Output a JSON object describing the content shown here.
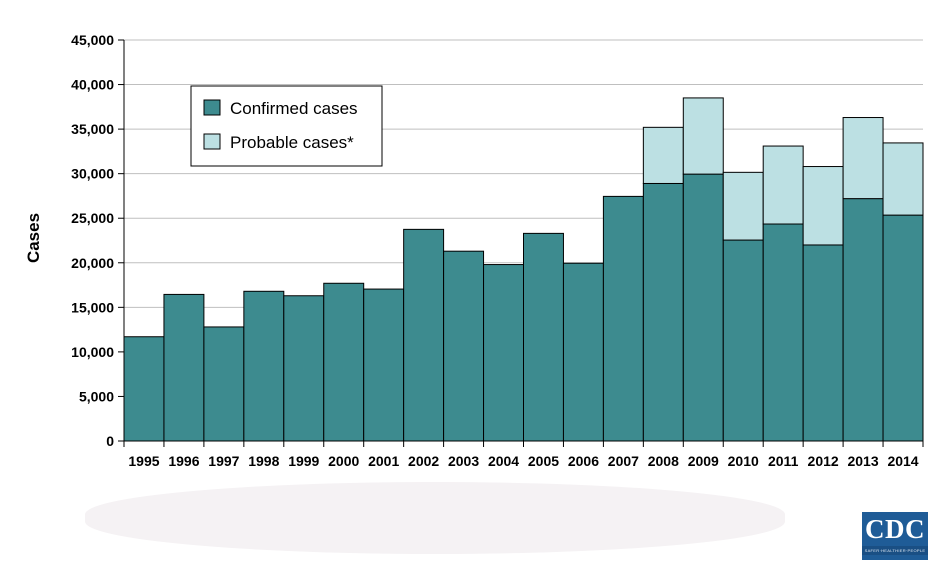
{
  "colors": {
    "confirmed": "#3d8b8f",
    "probable": "#bce0e3",
    "gridline": "#bfbfbf",
    "logo": "#1f5c97"
  },
  "logo": {
    "text": "CDC",
    "tagline": "SAFER·HEALTHIER·PEOPLE"
  },
  "chart_data": {
    "type": "bar",
    "stacked": true,
    "ylabel": "Cases",
    "xlabel": "",
    "ylim": [
      0,
      45000
    ],
    "ytick_step": 5000,
    "yticks": [
      "0",
      "5,000",
      "10,000",
      "15,000",
      "20,000",
      "25,000",
      "30,000",
      "35,000",
      "40,000",
      "45,000"
    ],
    "grid": true,
    "legend_position": "top-left",
    "categories": [
      "1995",
      "1996",
      "1997",
      "1998",
      "1999",
      "2000",
      "2001",
      "2002",
      "2003",
      "2004",
      "2005",
      "2006",
      "2007",
      "2008",
      "2009",
      "2010",
      "2011",
      "2012",
      "2013",
      "2014"
    ],
    "series": [
      {
        "name": "Confirmed cases",
        "values": [
          11700,
          16450,
          12800,
          16800,
          16300,
          17700,
          17050,
          23750,
          21300,
          19800,
          23300,
          19950,
          27450,
          28900,
          29950,
          22550,
          24350,
          22000,
          27200,
          25350
        ]
      },
      {
        "name": "Probable cases*",
        "values": [
          0,
          0,
          0,
          0,
          0,
          0,
          0,
          0,
          0,
          0,
          0,
          0,
          0,
          6300,
          8550,
          7600,
          8750,
          8800,
          9100,
          8100
        ]
      }
    ]
  }
}
